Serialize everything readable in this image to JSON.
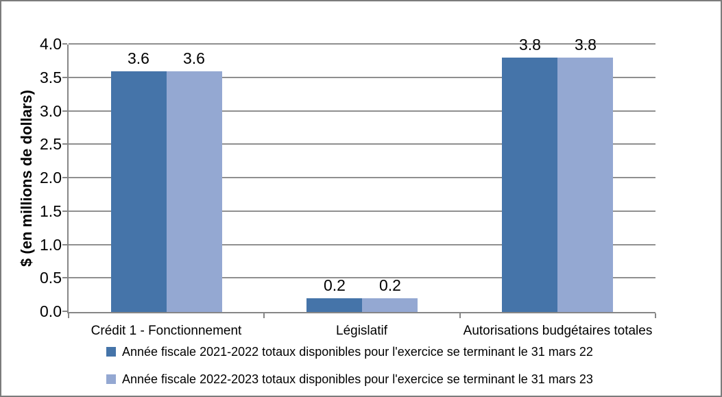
{
  "chart_data": {
    "type": "bar",
    "title": "",
    "xlabel": "",
    "ylabel": "$ (en millions de dollars)",
    "ylim": [
      0,
      4
    ],
    "ytick_step": 0.5,
    "ytick_labels": [
      "0.0",
      "0.5",
      "1.0",
      "1.5",
      "2.0",
      "2.5",
      "3.0",
      "3.5",
      "4.0"
    ],
    "grid": true,
    "legend_position": "bottom",
    "categories": [
      "Crédit 1 - Fonctionnement",
      "Législatif",
      "Autorisations budgétaires totales"
    ],
    "series": [
      {
        "name": "Année fiscale 2021-2022 totaux disponibles pour l'exercice se terminant le 31 mars 22",
        "color": "#4574a9",
        "values": [
          3.6,
          0.2,
          3.8
        ],
        "data_labels": [
          "3.6",
          "0.2",
          "3.8"
        ]
      },
      {
        "name": "Année fiscale 2022-2023 totaux disponibles pour l'exercice se terminant le 31 mars 23",
        "color": "#94a8d2",
        "values": [
          3.6,
          0.2,
          3.8
        ],
        "data_labels": [
          "3.6",
          "0.2",
          "3.8"
        ]
      }
    ],
    "colors": {
      "gridline": "#8f8f8f",
      "axis": "#868686",
      "chart_border": "#7c7c7c",
      "text": "#000000"
    }
  }
}
